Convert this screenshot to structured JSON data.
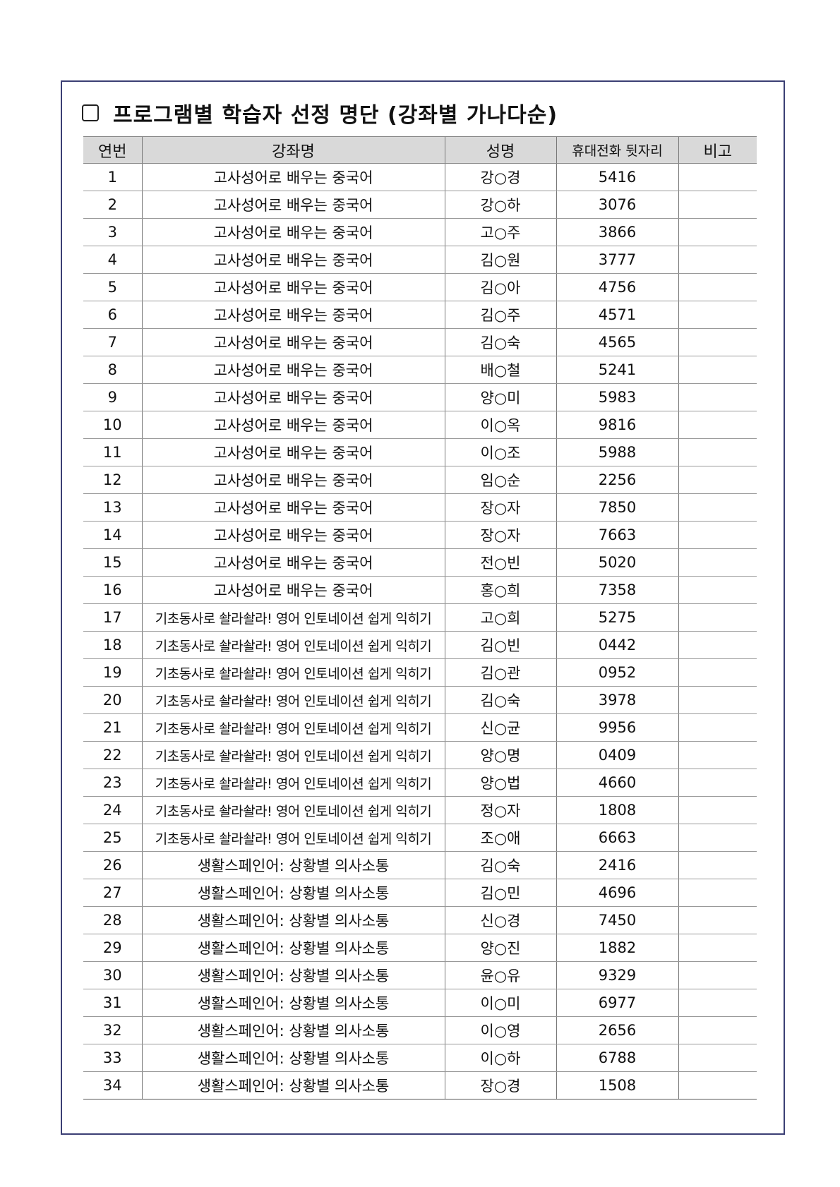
{
  "title": "프로그램별 학습자 선정 명단 (강좌별 가나다순)",
  "table": {
    "headers": [
      "연번",
      "강좌명",
      "성명",
      "휴대전화 뒷자리",
      "비고"
    ],
    "rows": [
      {
        "no": "1",
        "course": "고사성어로 배우는 중국어",
        "name": "강○경",
        "phone": "5416",
        "note": ""
      },
      {
        "no": "2",
        "course": "고사성어로 배우는 중국어",
        "name": "강○하",
        "phone": "3076",
        "note": ""
      },
      {
        "no": "3",
        "course": "고사성어로 배우는 중국어",
        "name": "고○주",
        "phone": "3866",
        "note": ""
      },
      {
        "no": "4",
        "course": "고사성어로 배우는 중국어",
        "name": "김○원",
        "phone": "3777",
        "note": ""
      },
      {
        "no": "5",
        "course": "고사성어로 배우는 중국어",
        "name": "김○아",
        "phone": "4756",
        "note": ""
      },
      {
        "no": "6",
        "course": "고사성어로 배우는 중국어",
        "name": "김○주",
        "phone": "4571",
        "note": ""
      },
      {
        "no": "7",
        "course": "고사성어로 배우는 중국어",
        "name": "김○숙",
        "phone": "4565",
        "note": ""
      },
      {
        "no": "8",
        "course": "고사성어로 배우는 중국어",
        "name": "배○철",
        "phone": "5241",
        "note": ""
      },
      {
        "no": "9",
        "course": "고사성어로 배우는 중국어",
        "name": "양○미",
        "phone": "5983",
        "note": ""
      },
      {
        "no": "10",
        "course": "고사성어로 배우는 중국어",
        "name": "이○옥",
        "phone": "9816",
        "note": ""
      },
      {
        "no": "11",
        "course": "고사성어로 배우는 중국어",
        "name": "이○조",
        "phone": "5988",
        "note": ""
      },
      {
        "no": "12",
        "course": "고사성어로 배우는 중국어",
        "name": "임○순",
        "phone": "2256",
        "note": ""
      },
      {
        "no": "13",
        "course": "고사성어로 배우는 중국어",
        "name": "장○자",
        "phone": "7850",
        "note": ""
      },
      {
        "no": "14",
        "course": "고사성어로 배우는 중국어",
        "name": "장○자",
        "phone": "7663",
        "note": ""
      },
      {
        "no": "15",
        "course": "고사성어로 배우는 중국어",
        "name": "전○빈",
        "phone": "5020",
        "note": ""
      },
      {
        "no": "16",
        "course": "고사성어로 배우는 중국어",
        "name": "홍○희",
        "phone": "7358",
        "note": ""
      },
      {
        "no": "17",
        "course": "기초동사로 솰라솰라! 영어 인토네이션 쉽게 익히기",
        "name": "고○희",
        "phone": "5275",
        "note": ""
      },
      {
        "no": "18",
        "course": "기초동사로 솰라솰라! 영어 인토네이션 쉽게 익히기",
        "name": "김○빈",
        "phone": "0442",
        "note": ""
      },
      {
        "no": "19",
        "course": "기초동사로 솰라솰라! 영어 인토네이션 쉽게 익히기",
        "name": "김○관",
        "phone": "0952",
        "note": ""
      },
      {
        "no": "20",
        "course": "기초동사로 솰라솰라! 영어 인토네이션 쉽게 익히기",
        "name": "김○숙",
        "phone": "3978",
        "note": ""
      },
      {
        "no": "21",
        "course": "기초동사로 솰라솰라! 영어 인토네이션 쉽게 익히기",
        "name": "신○균",
        "phone": "9956",
        "note": ""
      },
      {
        "no": "22",
        "course": "기초동사로 솰라솰라! 영어 인토네이션 쉽게 익히기",
        "name": "양○명",
        "phone": "0409",
        "note": ""
      },
      {
        "no": "23",
        "course": "기초동사로 솰라솰라! 영어 인토네이션 쉽게 익히기",
        "name": "양○법",
        "phone": "4660",
        "note": ""
      },
      {
        "no": "24",
        "course": "기초동사로 솰라솰라! 영어 인토네이션 쉽게 익히기",
        "name": "정○자",
        "phone": "1808",
        "note": ""
      },
      {
        "no": "25",
        "course": "기초동사로 솰라솰라! 영어 인토네이션 쉽게 익히기",
        "name": "조○애",
        "phone": "6663",
        "note": ""
      },
      {
        "no": "26",
        "course": "생활스페인어: 상황별 의사소통",
        "name": "김○숙",
        "phone": "2416",
        "note": ""
      },
      {
        "no": "27",
        "course": "생활스페인어: 상황별 의사소통",
        "name": "김○민",
        "phone": "4696",
        "note": ""
      },
      {
        "no": "28",
        "course": "생활스페인어: 상황별 의사소통",
        "name": "신○경",
        "phone": "7450",
        "note": ""
      },
      {
        "no": "29",
        "course": "생활스페인어: 상황별 의사소통",
        "name": "양○진",
        "phone": "1882",
        "note": ""
      },
      {
        "no": "30",
        "course": "생활스페인어: 상황별 의사소통",
        "name": "윤○유",
        "phone": "9329",
        "note": ""
      },
      {
        "no": "31",
        "course": "생활스페인어: 상황별 의사소통",
        "name": "이○미",
        "phone": "6977",
        "note": ""
      },
      {
        "no": "32",
        "course": "생활스페인어: 상황별 의사소통",
        "name": "이○영",
        "phone": "2656",
        "note": ""
      },
      {
        "no": "33",
        "course": "생활스페인어: 상황별 의사소통",
        "name": "이○하",
        "phone": "6788",
        "note": ""
      },
      {
        "no": "34",
        "course": "생활스페인어: 상황별 의사소통",
        "name": "장○경",
        "phone": "1508",
        "note": ""
      }
    ]
  }
}
